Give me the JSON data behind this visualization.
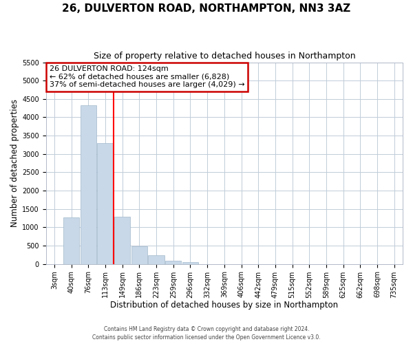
{
  "title": "26, DULVERTON ROAD, NORTHAMPTON, NN3 3AZ",
  "subtitle": "Size of property relative to detached houses in Northampton",
  "xlabel": "Distribution of detached houses by size in Northampton",
  "ylabel": "Number of detached properties",
  "bar_labels": [
    "3sqm",
    "40sqm",
    "76sqm",
    "113sqm",
    "149sqm",
    "186sqm",
    "223sqm",
    "259sqm",
    "296sqm",
    "332sqm",
    "369sqm",
    "406sqm",
    "442sqm",
    "479sqm",
    "515sqm",
    "552sqm",
    "589sqm",
    "625sqm",
    "662sqm",
    "698sqm",
    "735sqm"
  ],
  "bar_values": [
    0,
    1270,
    4330,
    3300,
    1290,
    480,
    240,
    80,
    50,
    0,
    0,
    0,
    0,
    0,
    0,
    0,
    0,
    0,
    0,
    0,
    0
  ],
  "bar_color": "#c8d8e8",
  "bar_edge_color": "#a0b8cc",
  "property_line_label": "26 DULVERTON ROAD: 124sqm",
  "annotation_line1": "← 62% of detached houses are smaller (6,828)",
  "annotation_line2": "37% of semi-detached houses are larger (4,029) →",
  "annotation_box_color": "#cc0000",
  "ylim": [
    0,
    5500
  ],
  "yticks": [
    0,
    500,
    1000,
    1500,
    2000,
    2500,
    3000,
    3500,
    4000,
    4500,
    5000,
    5500
  ],
  "footnote1": "Contains HM Land Registry data © Crown copyright and database right 2024.",
  "footnote2": "Contains public sector information licensed under the Open Government Licence v3.0.",
  "background_color": "#ffffff",
  "grid_color": "#c0ccd8",
  "title_fontsize": 11,
  "subtitle_fontsize": 9,
  "xlabel_fontsize": 8.5,
  "ylabel_fontsize": 8.5,
  "tick_fontsize": 7,
  "annot_fontsize": 8
}
